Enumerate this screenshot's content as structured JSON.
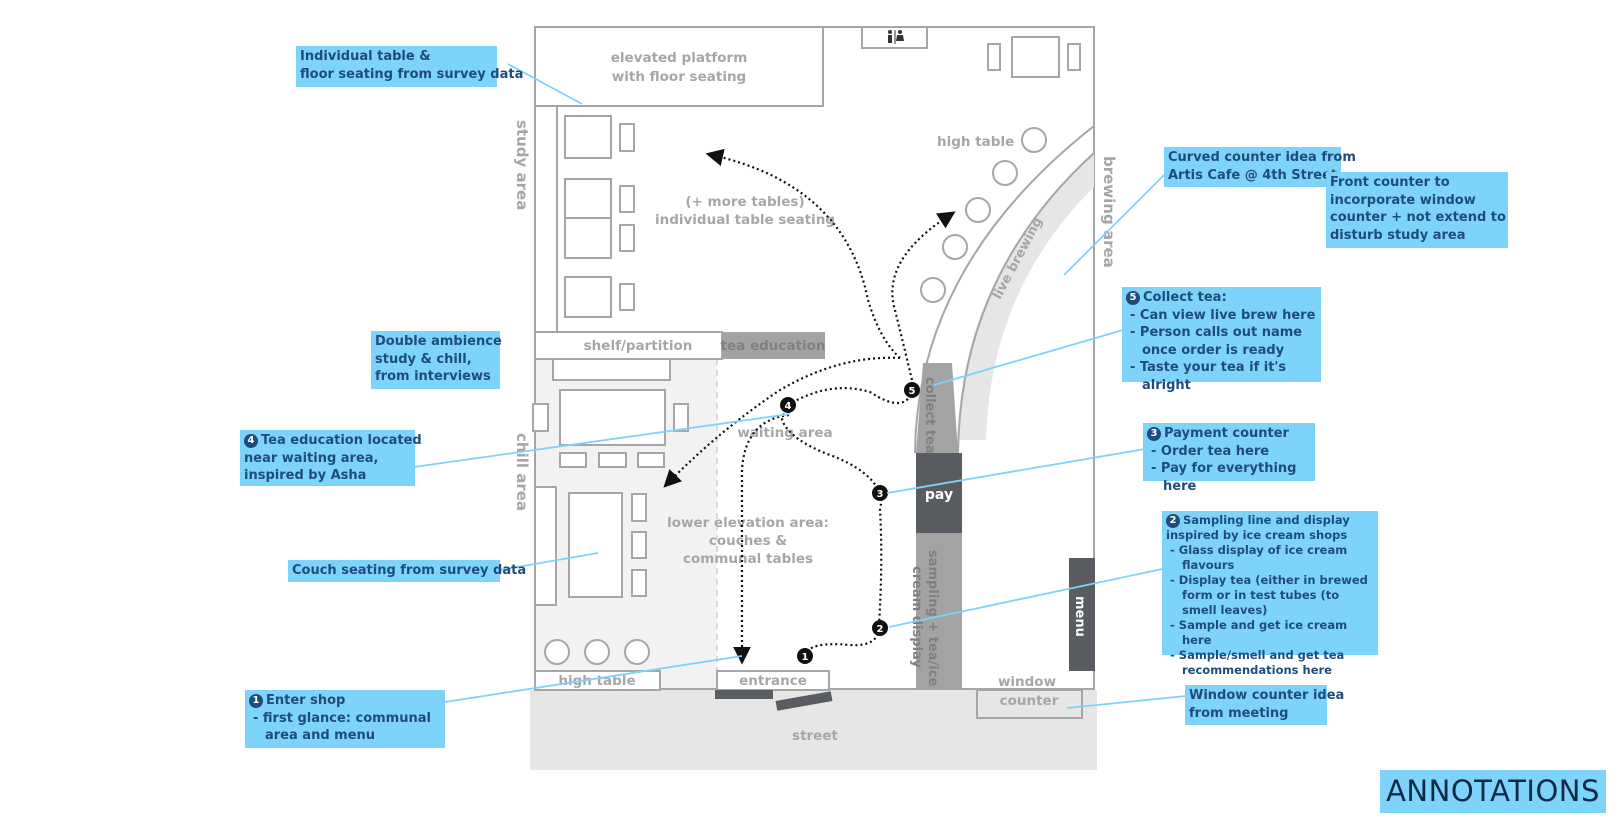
{
  "floorplan": {
    "labels": {
      "elevated_platform": [
        "elevated platform",
        "with floor seating"
      ],
      "study_area": "study area",
      "more_tables": [
        "(+ more tables)",
        "individual table seating"
      ],
      "high_table_top": "high table",
      "brewing_area": "brewing area",
      "live_brewing": "live brewing",
      "shelf_partition": "shelf/partition",
      "tea_education": "tea education",
      "chill_area": "chill area",
      "waiting_area": "waiting area",
      "collect_tea": "collect tea",
      "pay": "pay",
      "lower_elevation": [
        "lower elevation area:",
        "couches &",
        "communal tables"
      ],
      "sampling": [
        "sampling + tea/ice",
        "cream display"
      ],
      "menu": "menu",
      "high_table_bottom": "high table",
      "entrance": "entrance",
      "window": "window",
      "counter": "counter",
      "street": "street"
    },
    "markers": [
      "1",
      "2",
      "3",
      "4",
      "5"
    ],
    "colors": {
      "wall": "#a6a6a6",
      "dark_counter": "#595c61",
      "mid_counter": "#a3a3a3",
      "street": "#e6e6e6",
      "chill_bg": "#f2f2f2",
      "annotation": "#7dd3fa",
      "annotation_text": "#1f4d7a"
    }
  },
  "annotations": {
    "individual_table": [
      "Individual table &",
      "floor seating from survey data"
    ],
    "double_ambience": [
      "Double ambience",
      "study & chill,",
      "from interviews"
    ],
    "tea_education": {
      "num": "4",
      "lines": [
        "Tea education located",
        "near waiting area,",
        "inspired by Asha"
      ]
    },
    "couch": [
      "Couch seating from survey data"
    ],
    "enter_shop": {
      "num": "1",
      "title": "Enter shop",
      "items": [
        "first glance: communal area and menu"
      ]
    },
    "curved_counter": [
      "Curved counter idea from",
      "Artis Cafe @ 4th Street"
    ],
    "front_counter": [
      "Front counter to",
      "incorporate window",
      "counter + not extend to",
      "disturb study area"
    ],
    "collect_tea": {
      "num": "5",
      "title": "Collect tea:",
      "items": [
        "Can view live brew here",
        "Person calls out name once order is ready",
        "Taste your tea if it's alright"
      ]
    },
    "payment": {
      "num": "3",
      "title": "Payment counter",
      "items": [
        "Order tea here",
        "Pay for everything here"
      ]
    },
    "sampling": {
      "num": "2",
      "title": "Sampling line and display",
      "title2": "inspired by ice cream shops",
      "items": [
        "Glass display of ice cream flavours",
        "Display tea (either in brewed form or in test tubes (to smell leaves)",
        "Sample and get ice cream here",
        "Sample/smell and get tea recommendations here"
      ]
    },
    "window_counter": [
      "Window counter idea",
      "from meeting"
    ]
  },
  "title": "ANNOTATIONS"
}
